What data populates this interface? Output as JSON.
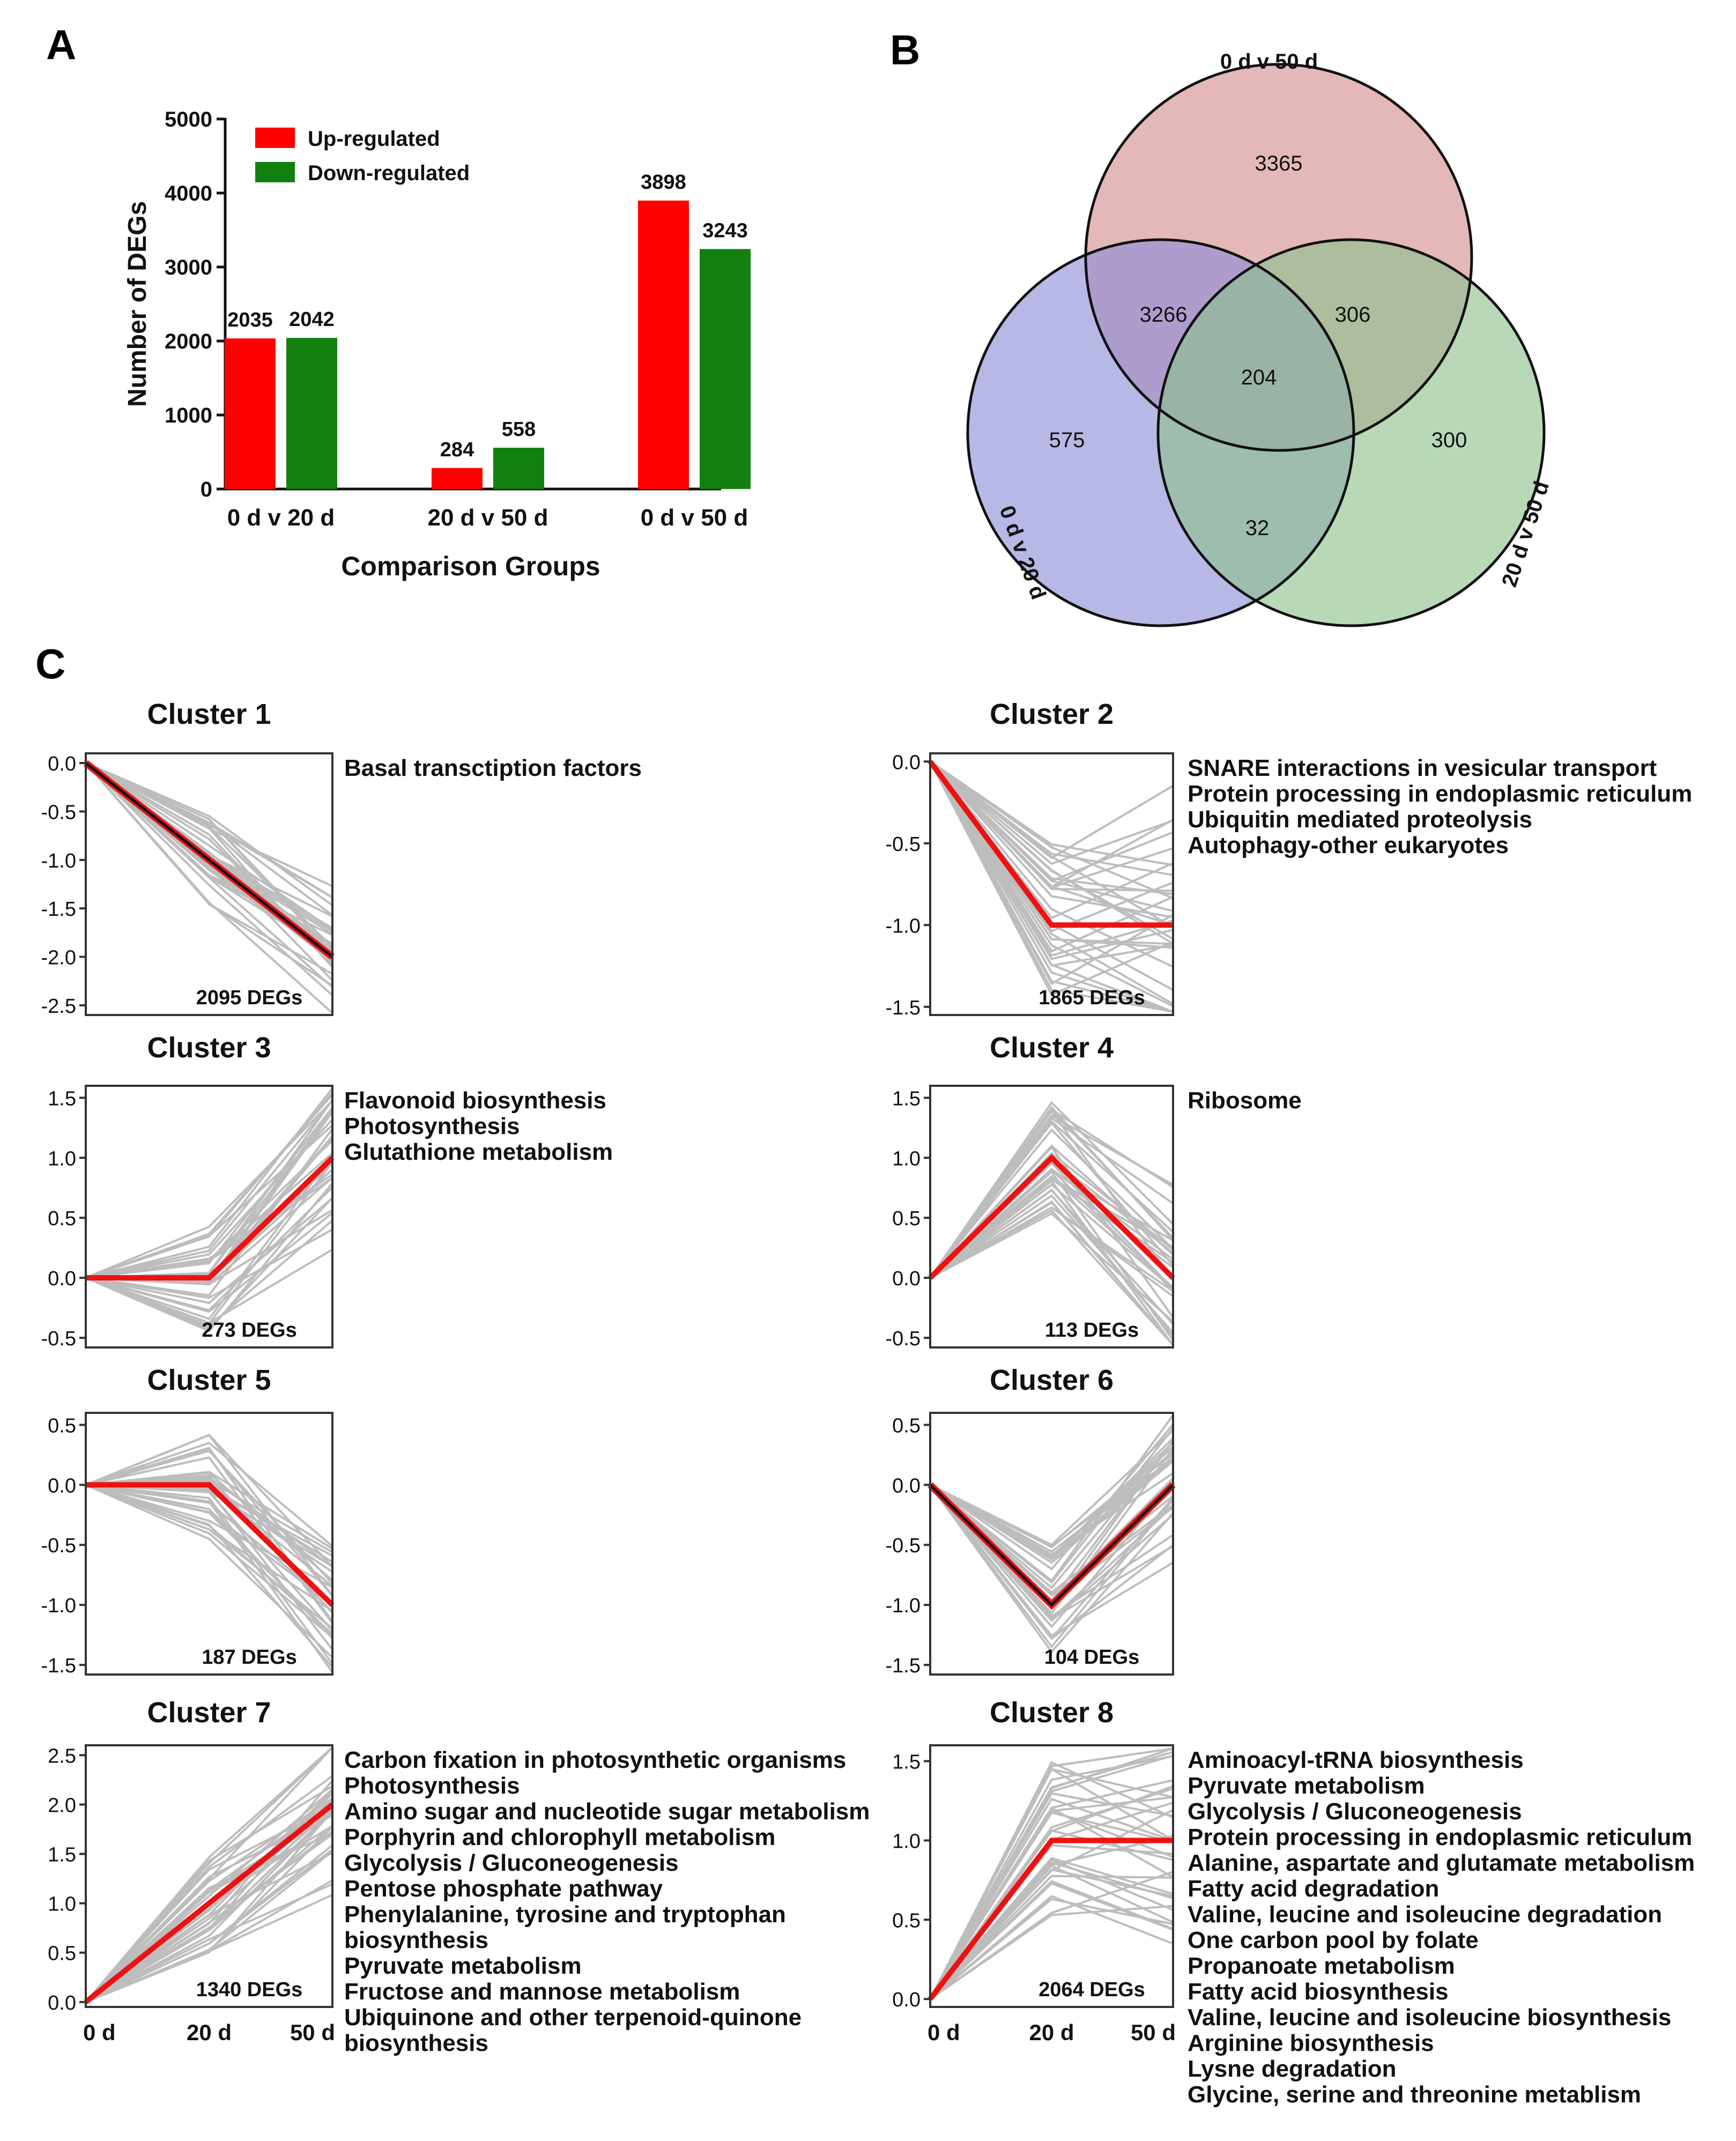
{
  "panel_letters": [
    "A",
    "B",
    "C"
  ],
  "colors": {
    "up": "#ff0000",
    "down": "#118011",
    "venn_a": "#d48c8c",
    "venn_b": "#8c8cd8",
    "venn_c": "#8cc08c",
    "profile_gray": "#bdbdbd",
    "profile_red": "#ee1111",
    "profile_black": "#111111"
  },
  "chart_data": [
    {
      "id": "A",
      "type": "bar",
      "categories": [
        "0 d v 20 d",
        "20 d v 50 d",
        "0 d v 50 d"
      ],
      "series": [
        {
          "name": "Up-regulated",
          "values": [
            2035,
            284,
            3898
          ]
        },
        {
          "name": "Down-regulated",
          "values": [
            2042,
            558,
            3243
          ]
        }
      ],
      "xlabel": "Comparison Groups",
      "ylabel": "Number of DEGs",
      "ylim": [
        0,
        5000
      ],
      "yticks": [
        0,
        1000,
        2000,
        3000,
        4000,
        5000
      ],
      "legend": "top-left"
    },
    {
      "id": "B",
      "type": "venn",
      "sets": [
        "0 d v 50 d",
        "0 d v 20 d",
        "20 d v 50 d"
      ],
      "regions": {
        "only_50": 3365,
        "only_20": 575,
        "only_20_50": 300,
        "0v50_and_0v20": 3266,
        "0v50_and_20v50": 306,
        "0v20_and_20v50": 32,
        "all": 204
      }
    },
    {
      "id": "C",
      "type": "line",
      "x": [
        "0 d",
        "20 d",
        "50 d"
      ],
      "clusters": [
        {
          "title": "Cluster 1",
          "degs": "2095 DEGs",
          "ylim": [
            -2.6,
            0.1
          ],
          "yticks": [
            "0.0",
            "-0.5",
            "-1.0",
            "-1.5",
            "-2.0",
            "-2.5"
          ],
          "ytick_values": [
            0,
            -0.5,
            -1,
            -1.5,
            -2,
            -2.5
          ],
          "profile": [
            0,
            -1,
            -2
          ],
          "mean_color": "black",
          "pathways": [
            "Basal transctiption factors"
          ]
        },
        {
          "title": "Cluster 2",
          "degs": "1865 DEGs",
          "ylim": [
            -1.55,
            0.05
          ],
          "yticks": [
            "0.0",
            "-0.5",
            "-1.0",
            "-1.5"
          ],
          "ytick_values": [
            0,
            -0.5,
            -1,
            -1.5
          ],
          "profile": [
            0,
            -1,
            -1
          ],
          "mean_color": "red",
          "pathways": [
            "SNARE interactions in vesicular transport",
            "Protein processing in endoplasmic reticulum",
            "Ubiquitin mediated proteolysis",
            "Autophagy-other eukaryotes"
          ]
        },
        {
          "title": "Cluster 3",
          "degs": "273 DEGs",
          "ylim": [
            -0.58,
            1.6
          ],
          "yticks": [
            "1.5",
            "1.0",
            "0.5",
            "0.0",
            "-0.5"
          ],
          "ytick_values": [
            1.5,
            1,
            0.5,
            0,
            -0.5
          ],
          "profile": [
            0,
            0,
            1
          ],
          "mean_color": "red",
          "pathways": [
            "Flavonoid biosynthesis",
            "Photosynthesis",
            "Glutathione metabolism"
          ]
        },
        {
          "title": "Cluster 4",
          "degs": "113 DEGs",
          "ylim": [
            -0.58,
            1.6
          ],
          "yticks": [
            "1.5",
            "1.0",
            "0.5",
            "0.0",
            "-0.5"
          ],
          "ytick_values": [
            1.5,
            1,
            0.5,
            0,
            -0.5
          ],
          "profile": [
            0,
            1,
            0
          ],
          "mean_color": "red",
          "pathways": [
            "Ribosome"
          ]
        },
        {
          "title": "Cluster 5",
          "degs": "187 DEGs",
          "ylim": [
            -1.58,
            0.6
          ],
          "yticks": [
            "0.5",
            "0.0",
            "-0.5",
            "-1.0",
            "-1.5"
          ],
          "ytick_values": [
            0.5,
            0,
            -0.5,
            -1,
            -1.5
          ],
          "profile": [
            0,
            0,
            -1
          ],
          "mean_color": "red",
          "pathways": []
        },
        {
          "title": "Cluster 6",
          "degs": "104 DEGs",
          "ylim": [
            -1.58,
            0.6
          ],
          "yticks": [
            "0.5",
            "0.0",
            "-0.5",
            "-1.0",
            "-1.5"
          ],
          "ytick_values": [
            0.5,
            0,
            -0.5,
            -1,
            -1.5
          ],
          "profile": [
            0,
            -1,
            0
          ],
          "mean_color": "black",
          "pathways": []
        },
        {
          "title": "Cluster 7",
          "degs": "1340 DEGs",
          "ylim": [
            -0.05,
            2.6
          ],
          "yticks": [
            "2.5",
            "2.0",
            "1.5",
            "1.0",
            "0.5",
            "0.0"
          ],
          "ytick_values": [
            2.5,
            2,
            1.5,
            1,
            0.5,
            0
          ],
          "profile": [
            0,
            1,
            2
          ],
          "mean_color": "red",
          "pathways": [
            "Carbon fixation in photosynthetic organisms",
            "Photosynthesis",
            "Amino sugar and nucleotide sugar metabolism",
            "Porphyrin and chlorophyll metabolism",
            "Glycolysis / Gluconeogenesis",
            "Pentose phosphate pathway",
            "Phenylalanine, tyrosine and tryptophan",
            "biosynthesis",
            "Pyruvate metabolism",
            "Fructose and mannose metabolism",
            "Ubiquinone and other terpenoid-quinone",
            "biosynthesis"
          ]
        },
        {
          "title": "Cluster 8",
          "degs": "2064 DEGs",
          "ylim": [
            -0.05,
            1.6
          ],
          "yticks": [
            "1.5",
            "1.0",
            "0.5",
            "0.0"
          ],
          "ytick_values": [
            1.5,
            1,
            0.5,
            0
          ],
          "profile": [
            0,
            1,
            1
          ],
          "mean_color": "red",
          "pathways": [
            "Aminoacyl-tRNA biosynthesis",
            "Pyruvate metabolism",
            "Glycolysis / Gluconeogenesis",
            "Protein processing in endoplasmic reticulum",
            "Alanine, aspartate and glutamate metabolism",
            "Fatty acid degradation",
            "Valine, leucine and isoleucine degradation",
            "One carbon pool by folate",
            "Propanoate metabolism",
            "Fatty acid biosynthesis",
            "Valine, leucine and isoleucine biosynthesis",
            "Arginine biosynthesis",
            "Lysne degradation",
            "Glycine, serine and threonine metablism"
          ]
        }
      ]
    }
  ]
}
